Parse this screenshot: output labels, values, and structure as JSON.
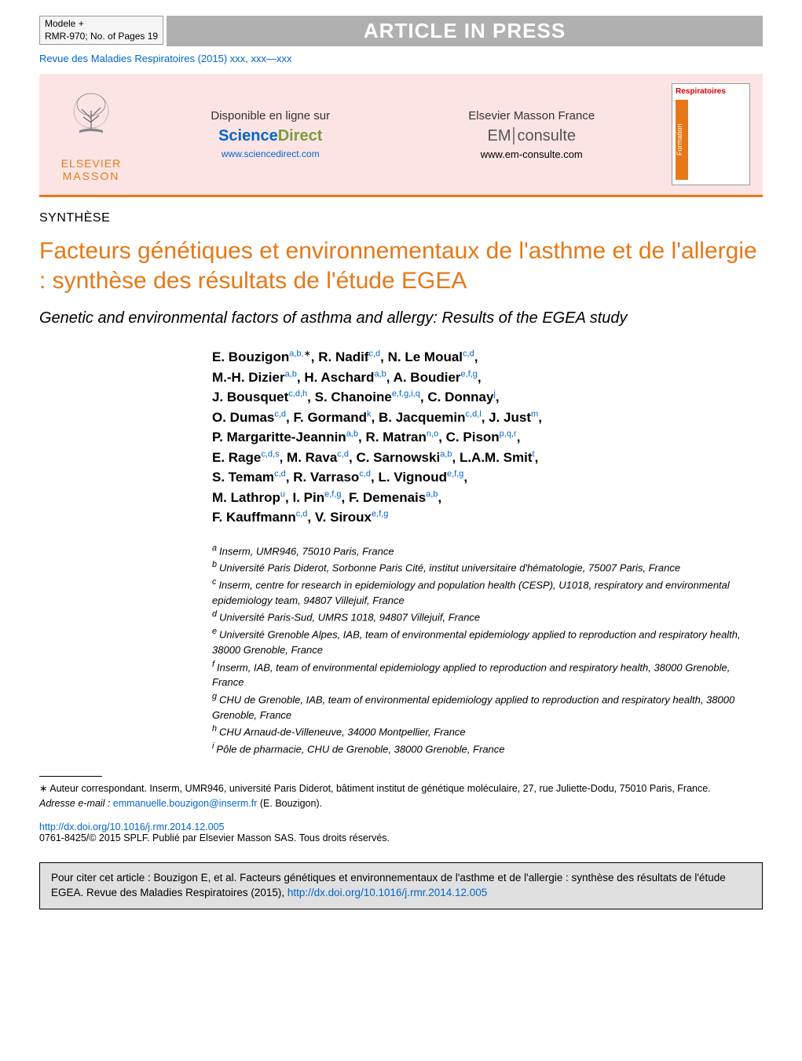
{
  "header": {
    "model_line1": "Modele +",
    "model_line2": "RMR-970;   No. of Pages 19",
    "press_label": "ARTICLE IN PRESS",
    "citation": "Revue des Maladies Respiratoires (2015) xxx, xxx—xxx"
  },
  "banner": {
    "elsevier_name1": "ELSEVIER",
    "elsevier_name2": "MASSON",
    "col1_label": "Disponible en ligne sur",
    "sd_part1": "Science",
    "sd_part2": "Direct",
    "sd_url": "www.sciencedirect.com",
    "col2_label": "Elsevier Masson France",
    "em_part1": "EM",
    "em_part2": "consulte",
    "em_url": "www.em-consulte.com",
    "cover_title": "Respiratoires",
    "formation": "Formation"
  },
  "article": {
    "section_label": "SYNTHÈSE",
    "title_fr": "Facteurs génétiques et environnementaux de l'asthme et de l'allergie : synthèse des résultats de l'étude EGEA",
    "title_en": "Genetic and environmental factors of asthma and allergy: Results of the EGEA study"
  },
  "authors": [
    {
      "name": "E. Bouzigon",
      "aff": "a,b,",
      "star": "∗"
    },
    {
      "name": "R. Nadif",
      "aff": "c,d"
    },
    {
      "name": "N. Le Moual",
      "aff": "c,d"
    },
    {
      "name": "M.-H. Dizier",
      "aff": "a,b"
    },
    {
      "name": "H. Aschard",
      "aff": "a,b"
    },
    {
      "name": "A. Boudier",
      "aff": "e,f,g"
    },
    {
      "name": "J. Bousquet",
      "aff": "c,d,h"
    },
    {
      "name": "S. Chanoine",
      "aff": "e,f,g,i,q"
    },
    {
      "name": "C. Donnay",
      "aff": "j"
    },
    {
      "name": "O. Dumas",
      "aff": "c,d"
    },
    {
      "name": "F. Gormand",
      "aff": "k"
    },
    {
      "name": "B. Jacquemin",
      "aff": "c,d,l"
    },
    {
      "name": "J. Just",
      "aff": "m"
    },
    {
      "name": "P. Margaritte-Jeannin",
      "aff": "a,b"
    },
    {
      "name": "R. Matran",
      "aff": "n,o"
    },
    {
      "name": "C. Pison",
      "aff": "p,q,r"
    },
    {
      "name": "E. Rage",
      "aff": "c,d,s"
    },
    {
      "name": "M. Rava",
      "aff": "c,d"
    },
    {
      "name": "C. Sarnowski",
      "aff": "a,b"
    },
    {
      "name": "L.A.M. Smit",
      "aff": "t"
    },
    {
      "name": "S. Temam",
      "aff": "c,d"
    },
    {
      "name": "R. Varraso",
      "aff": "c,d"
    },
    {
      "name": "L. Vignoud",
      "aff": "e,f,g"
    },
    {
      "name": "M. Lathrop",
      "aff": "u"
    },
    {
      "name": "I. Pin",
      "aff": "e,f,g"
    },
    {
      "name": "F. Demenais",
      "aff": "a,b"
    },
    {
      "name": "F. Kauffmann",
      "aff": "c,d"
    },
    {
      "name": "V. Siroux",
      "aff": "e,f,g"
    }
  ],
  "author_line_breaks": [
    3,
    6,
    9,
    13,
    16,
    20,
    23,
    26,
    28
  ],
  "affiliations": [
    {
      "key": "a",
      "text": "Inserm, UMR946, 75010 Paris, France"
    },
    {
      "key": "b",
      "text": "Université Paris Diderot, Sorbonne Paris Cité, institut universitaire d'hématologie, 75007 Paris, France"
    },
    {
      "key": "c",
      "text": "Inserm, centre for research in epidemiology and population health (CESP), U1018, respiratory and environmental epidemiology team, 94807 Villejuif, France"
    },
    {
      "key": "d",
      "text": "Université Paris-Sud, UMRS 1018, 94807 Villejuif, France"
    },
    {
      "key": "e",
      "text": "Université Grenoble Alpes, IAB, team of environmental epidemiology applied to reproduction and respiratory health, 38000 Grenoble, France"
    },
    {
      "key": "f",
      "text": "Inserm, IAB, team of environmental epidemiology applied to reproduction and respiratory health, 38000 Grenoble, France"
    },
    {
      "key": "g",
      "text": "CHU de Grenoble, IAB, team of environmental epidemiology applied to reproduction and respiratory health, 38000 Grenoble, France"
    },
    {
      "key": "h",
      "text": "CHU Arnaud-de-Villeneuve, 34000 Montpellier, France"
    },
    {
      "key": "i",
      "text": "Pôle de pharmacie, CHU de Grenoble, 38000 Grenoble, France"
    }
  ],
  "footnotes": {
    "corr": "∗ Auteur correspondant. Inserm, UMR946, université Paris Diderot, bâtiment institut de génétique moléculaire, 27, rue Juliette-Dodu, 75010 Paris, France.",
    "email_label": "Adresse e-mail :",
    "email": "emmanuelle.bouzigon@inserm.fr",
    "email_name": "(E. Bouzigon)."
  },
  "doi": {
    "url": "http://dx.doi.org/10.1016/j.rmr.2014.12.005",
    "copyright": "0761-8425/© 2015 SPLF. Publié par Elsevier Masson SAS. Tous droits réservés."
  },
  "citebox": {
    "text": "Pour citer cet article : Bouzigon E, et al. Facteurs génétiques et environnementaux de l'asthme et de l'allergie : synthèse des résultats de l'étude EGEA. Revue des Maladies Respiratoires (2015), ",
    "link": "http://dx.doi.org/10.1016/j.rmr.2014.12.005"
  },
  "colors": {
    "accent_orange": "#e67817",
    "link_blue": "#0066cc",
    "press_gray": "#b0b0b0",
    "pink_bg": "#fce4e4",
    "cite_bg": "#e0e0e0"
  }
}
